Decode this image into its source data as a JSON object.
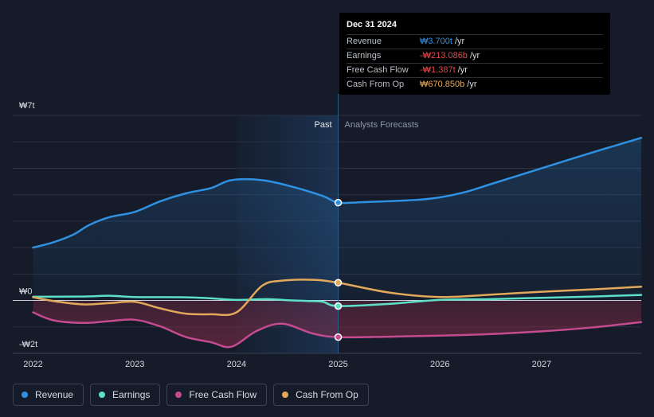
{
  "chart_data": {
    "type": "line",
    "currency_symbol": "₩",
    "y_labels": {
      "top": "₩7t",
      "zero": "₩0",
      "bottom": "-₩2t"
    },
    "ylim": [
      -2,
      7
    ],
    "x_ticks": [
      "2022",
      "2023",
      "2024",
      "2025",
      "2026",
      "2027"
    ],
    "x_tick_values": [
      2022,
      2023,
      2024,
      2025,
      2026,
      2027
    ],
    "xlim": [
      2021.8,
      2027.98
    ],
    "past_label": "Past",
    "forecast_label": "Analysts Forecasts",
    "divider_x": 2025,
    "shade_start_x": 2024,
    "series": [
      {
        "name": "Revenue",
        "color": "#2f91e2",
        "unit": "t",
        "x": [
          2022,
          2022.2,
          2022.4,
          2022.55,
          2022.75,
          2023,
          2023.25,
          2023.5,
          2023.75,
          2023.95,
          2024.25,
          2024.55,
          2024.85,
          2025,
          2025.25,
          2025.75,
          2026,
          2026.25,
          2026.5,
          2026.75,
          2027,
          2027.25,
          2027.5,
          2027.98
        ],
        "values": [
          2.0,
          2.2,
          2.5,
          2.85,
          3.15,
          3.35,
          3.75,
          4.05,
          4.25,
          4.55,
          4.55,
          4.3,
          3.95,
          3.7,
          3.72,
          3.8,
          3.9,
          4.1,
          4.4,
          4.7,
          5.0,
          5.3,
          5.6,
          6.15
        ]
      },
      {
        "name": "Earnings",
        "color": "#5ee0c8",
        "unit": "b",
        "x": [
          2022,
          2022.5,
          2022.75,
          2023,
          2023.5,
          2023.75,
          2024,
          2024.3,
          2024.5,
          2024.7,
          2024.85,
          2025,
          2025.5,
          2026,
          2026.5,
          2027,
          2027.5,
          2027.98
        ],
        "values": [
          0.14,
          0.15,
          0.18,
          0.13,
          0.12,
          0.08,
          0.02,
          0.05,
          0.01,
          -0.02,
          -0.05,
          -0.213,
          -0.13,
          0.02,
          0.05,
          0.1,
          0.15,
          0.21
        ]
      },
      {
        "name": "Free Cash Flow",
        "color": "#c44b8f",
        "unit": "t",
        "x": [
          2022,
          2022.2,
          2022.5,
          2022.75,
          2023,
          2023.25,
          2023.5,
          2023.75,
          2023.95,
          2024.2,
          2024.45,
          2024.75,
          2025,
          2025.5,
          2026,
          2026.5,
          2027,
          2027.5,
          2027.98
        ],
        "values": [
          -0.45,
          -0.75,
          -0.85,
          -0.78,
          -0.73,
          -0.98,
          -1.38,
          -1.58,
          -1.75,
          -1.15,
          -0.88,
          -1.25,
          -1.387,
          -1.37,
          -1.33,
          -1.27,
          -1.17,
          -1.02,
          -0.82
        ]
      },
      {
        "name": "Cash From Op",
        "color": "#e3a95a",
        "unit": "b",
        "x": [
          2022,
          2022.25,
          2022.5,
          2022.75,
          2023,
          2023.25,
          2023.5,
          2023.75,
          2024,
          2024.25,
          2024.45,
          2024.75,
          2025,
          2025.5,
          2026,
          2026.5,
          2027,
          2027.5,
          2027.98
        ],
        "values": [
          0.12,
          -0.05,
          -0.15,
          -0.1,
          -0.05,
          -0.3,
          -0.5,
          -0.52,
          -0.45,
          0.55,
          0.75,
          0.78,
          0.67085,
          0.3,
          0.13,
          0.22,
          0.33,
          0.42,
          0.52
        ]
      }
    ]
  },
  "tooltip": {
    "date": "Dec 31 2024",
    "rows": [
      {
        "label": "Revenue",
        "value": "₩3.700t",
        "unit": "/yr",
        "color": "#2f91e2"
      },
      {
        "label": "Earnings",
        "value": "-₩213.086b",
        "unit": "/yr",
        "color": "#e5484d"
      },
      {
        "label": "Free Cash Flow",
        "value": "-₩1.387t",
        "unit": "/yr",
        "color": "#e5484d"
      },
      {
        "label": "Cash From Op",
        "value": "₩670.850b",
        "unit": "/yr",
        "color": "#e3a95a"
      }
    ]
  },
  "legend": [
    {
      "label": "Revenue",
      "color": "#2f91e2"
    },
    {
      "label": "Earnings",
      "color": "#5ee0c8"
    },
    {
      "label": "Free Cash Flow",
      "color": "#c44b8f"
    },
    {
      "label": "Cash From Op",
      "color": "#e3a95a"
    }
  ]
}
